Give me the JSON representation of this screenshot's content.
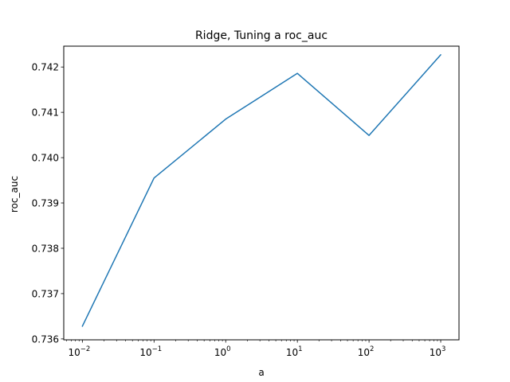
{
  "chart_data": {
    "type": "line",
    "title": "Ridge, Tuning a roc_auc",
    "xlabel": "a",
    "ylabel": "roc_auc",
    "xscale": "log",
    "xlim": [
      0.0055,
      1800
    ],
    "ylim": [
      0.73598,
      0.74246
    ],
    "grid": false,
    "legend": "none",
    "x_ticks": [
      {
        "value": 0.01,
        "base": "10",
        "exp": "−2"
      },
      {
        "value": 0.1,
        "base": "10",
        "exp": "−1"
      },
      {
        "value": 1,
        "base": "10",
        "exp": "0"
      },
      {
        "value": 10,
        "base": "10",
        "exp": "1"
      },
      {
        "value": 100,
        "base": "10",
        "exp": "2"
      },
      {
        "value": 1000,
        "base": "10",
        "exp": "3"
      }
    ],
    "y_ticks": [
      "0.736",
      "0.737",
      "0.738",
      "0.739",
      "0.740",
      "0.741",
      "0.742"
    ],
    "series": [
      {
        "color": "#1f77b4",
        "x": [
          0.01,
          0.1,
          1,
          10,
          100,
          1000
        ],
        "y": [
          0.73628,
          0.73955,
          0.74085,
          0.74186,
          0.74049,
          0.74227
        ]
      }
    ]
  }
}
